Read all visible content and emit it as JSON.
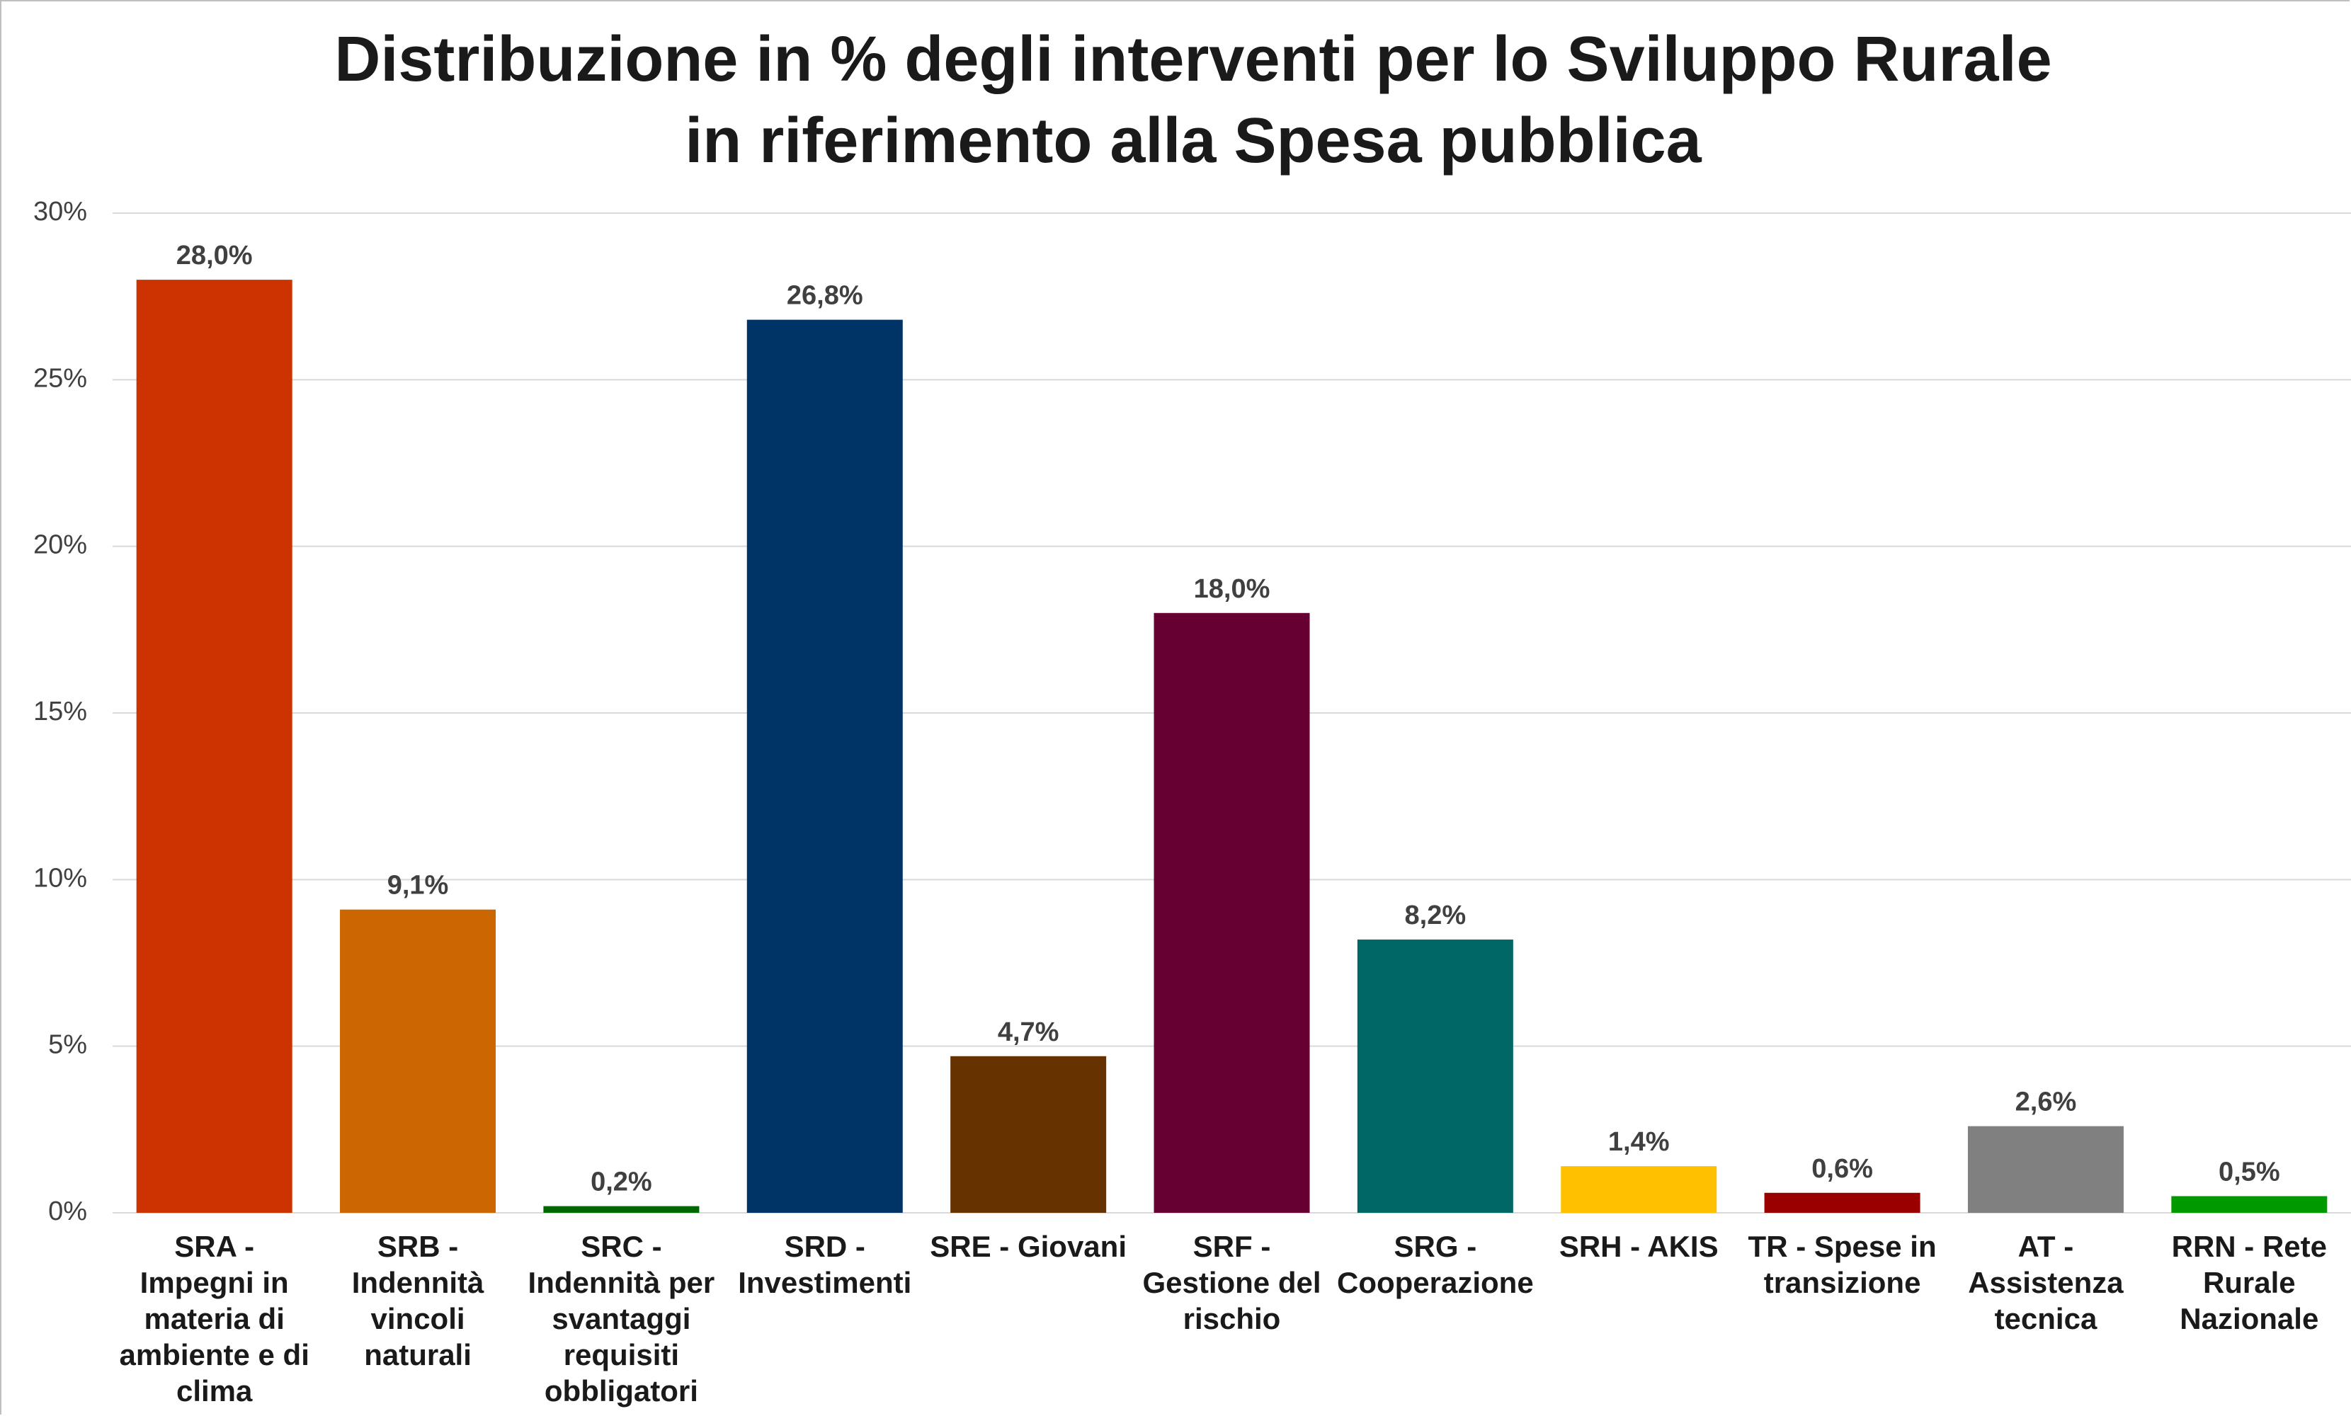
{
  "chart_data": {
    "type": "bar",
    "title": [
      "Distribuzione in % degli interventi per lo Sviluppo Rurale",
      "in riferimento alla Spesa pubblica"
    ],
    "categories": [
      "SRA - Impegni in materia di ambiente e di clima",
      "SRB - Indennità vincoli naturali",
      "SRC - Indennità per svantaggi requisiti obbligatori",
      "SRD - Investimenti",
      "SRE - Giovani",
      "SRF - Gestione del rischio",
      "SRG - Cooperazione",
      "SRH - AKIS",
      "TR - Spese in transizione",
      "AT - Assistenza tecnica",
      "RRN - Rete Rurale Nazionale"
    ],
    "values": [
      28.0,
      9.1,
      0.2,
      26.8,
      4.7,
      18.0,
      8.2,
      1.4,
      0.6,
      2.6,
      0.5
    ],
    "value_labels": [
      "28,0%",
      "9,1%",
      "0,2%",
      "26,8%",
      "4,7%",
      "18,0%",
      "8,2%",
      "1,4%",
      "0,6%",
      "2,6%",
      "0,5%"
    ],
    "colors": [
      "#cc3300",
      "#cc6600",
      "#006600",
      "#003366",
      "#663300",
      "#660033",
      "#006666",
      "#ffc000",
      "#990000",
      "#808080",
      "#009900"
    ],
    "ylim": [
      0,
      30
    ],
    "yticks": [
      {
        "value": 0,
        "label": "0%"
      },
      {
        "value": 5,
        "label": "5%"
      },
      {
        "value": 10,
        "label": "10%"
      },
      {
        "value": 15,
        "label": "15%"
      },
      {
        "value": 20,
        "label": "20%"
      },
      {
        "value": 25,
        "label": "25%"
      },
      {
        "value": 30,
        "label": "30%"
      }
    ],
    "grid": true
  }
}
